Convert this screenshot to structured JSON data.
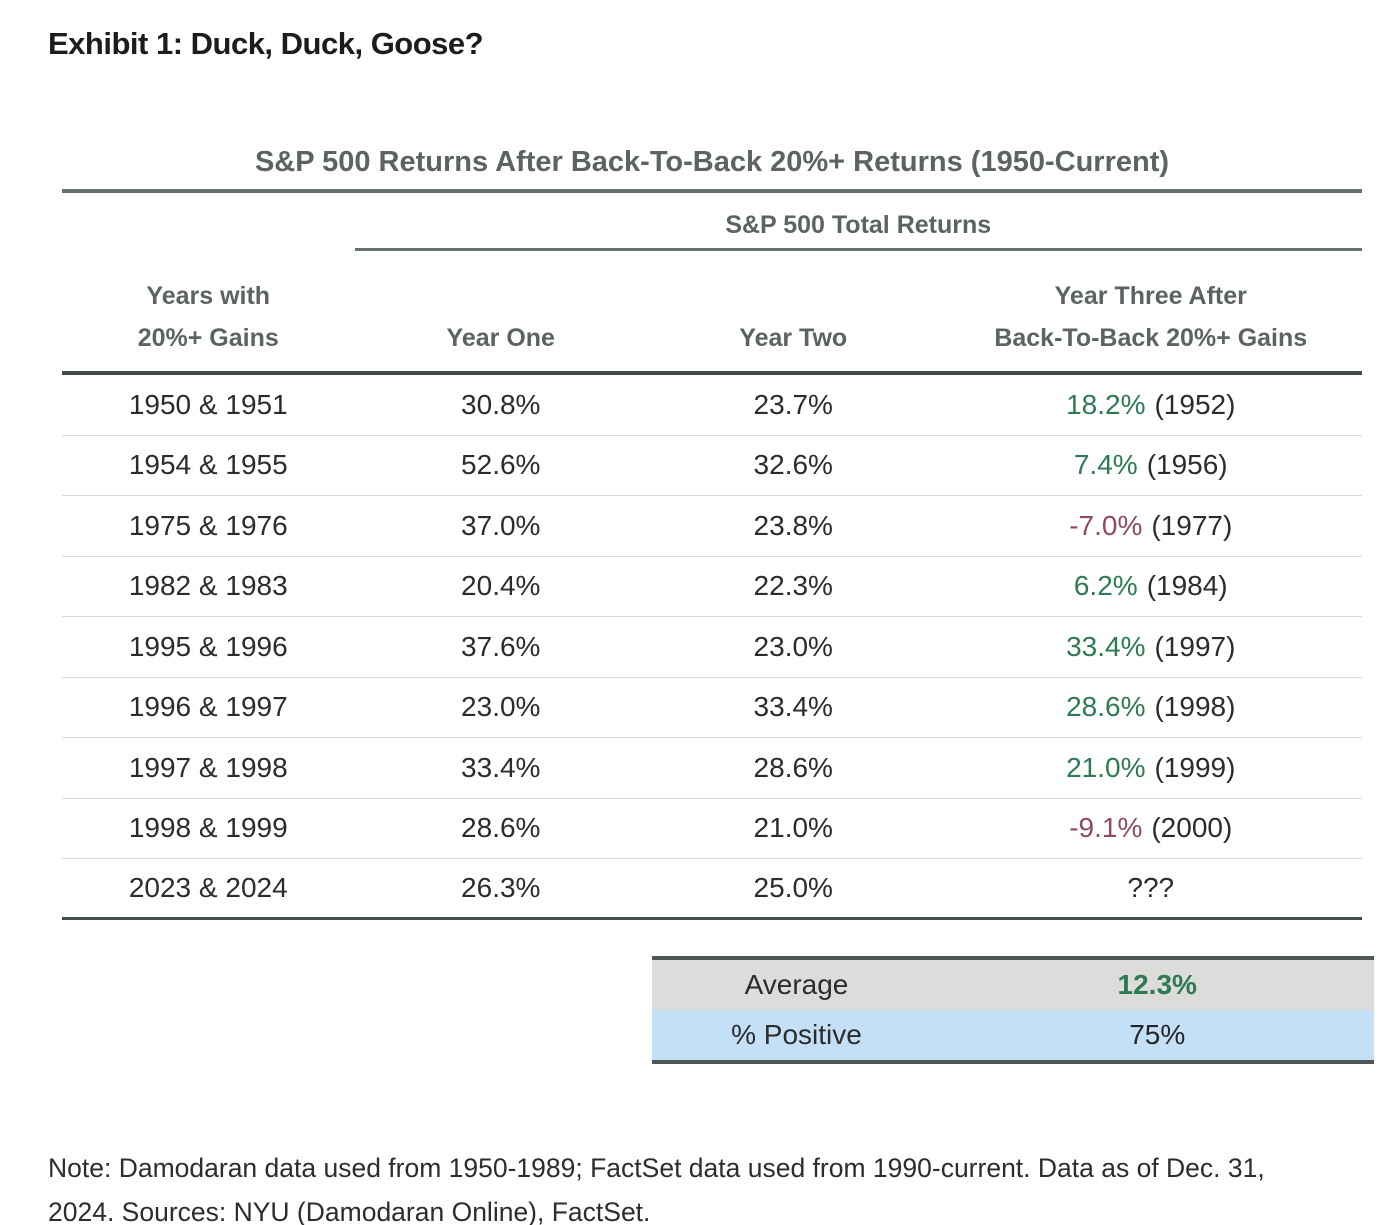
{
  "page": {
    "exhibit_title": "Exhibit 1: Duck, Duck, Goose?",
    "note_line1": "Note: Damodaran data used from 1950-1989; FactSet data used from 1990-current. Data as of Dec. 31,",
    "note_line2": "2024. Sources: NYU (Damodaran Online), FactSet."
  },
  "chart_data": {
    "type": "table",
    "title": "S&P 500 Returns After Back-To-Back 20%+ Returns (1950-Current)",
    "group_header": "S&P 500 Total Returns",
    "columns": [
      "Years with 20%+ Gains",
      "Year One",
      "Year Two",
      "Year Three After Back-To-Back 20%+ Gains"
    ],
    "header": {
      "col1_line1": "Years with",
      "col1_line2": "20%+ Gains",
      "col2": "Year One",
      "col3": "Year Two",
      "col4_line1": "Year Three After",
      "col4_line2": "Back-To-Back 20%+ Gains"
    },
    "rows": [
      {
        "years": "1950 & 1951",
        "year_one": "30.8%",
        "year_two": "23.7%",
        "year_three": "18.2%",
        "year_three_year": "(1952)",
        "sentiment": "positive"
      },
      {
        "years": "1954 & 1955",
        "year_one": "52.6%",
        "year_two": "32.6%",
        "year_three": "7.4%",
        "year_three_year": "(1956)",
        "sentiment": "positive"
      },
      {
        "years": "1975 & 1976",
        "year_one": "37.0%",
        "year_two": "23.8%",
        "year_three": "-7.0%",
        "year_three_year": "(1977)",
        "sentiment": "negative"
      },
      {
        "years": "1982 & 1983",
        "year_one": "20.4%",
        "year_two": "22.3%",
        "year_three": "6.2%",
        "year_three_year": "(1984)",
        "sentiment": "positive"
      },
      {
        "years": "1995 & 1996",
        "year_one": "37.6%",
        "year_two": "23.0%",
        "year_three": "33.4%",
        "year_three_year": "(1997)",
        "sentiment": "positive"
      },
      {
        "years": "1996 & 1997",
        "year_one": "23.0%",
        "year_two": "33.4%",
        "year_three": "28.6%",
        "year_three_year": "(1998)",
        "sentiment": "positive"
      },
      {
        "years": "1997 & 1998",
        "year_one": "33.4%",
        "year_two": "28.6%",
        "year_three": "21.0%",
        "year_three_year": "(1999)",
        "sentiment": "positive"
      },
      {
        "years": "1998 & 1999",
        "year_one": "28.6%",
        "year_two": "21.0%",
        "year_three": "-9.1%",
        "year_three_year": "(2000)",
        "sentiment": "negative"
      },
      {
        "years": "2023 & 2024",
        "year_one": "26.3%",
        "year_two": "25.0%",
        "year_three": "???",
        "year_three_year": "",
        "sentiment": "unknown"
      }
    ],
    "summary": {
      "average_label": "Average",
      "average_value": "12.3%",
      "positive_label": "% Positive",
      "positive_value": "75%"
    },
    "colors": {
      "positive_text": "#2e7a52",
      "negative_text": "#8f4a5e",
      "header_text": "#5b6461",
      "body_text": "#2c2c2c",
      "average_row_bg": "#dcdcda",
      "positive_row_bg": "#c3e0f6",
      "heavy_rule": "#454d4b",
      "medium_rule": "#66706c",
      "light_rule": "#d9d9d9"
    }
  }
}
